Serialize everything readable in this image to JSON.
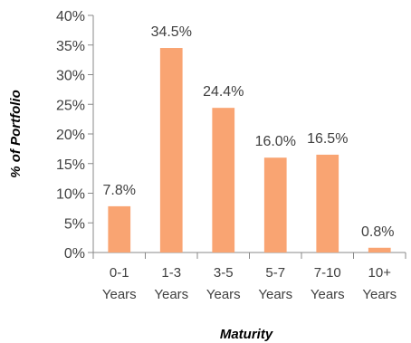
{
  "chart_data": {
    "type": "bar",
    "categories": [
      "0-1 Years",
      "1-3 Years",
      "3-5 Years",
      "5-7 Years",
      "7-10 Years",
      "10+ Years"
    ],
    "category_lines": [
      [
        "0-1",
        "Years"
      ],
      [
        "1-3",
        "Years"
      ],
      [
        "3-5",
        "Years"
      ],
      [
        "5-7",
        "Years"
      ],
      [
        "7-10",
        "Years"
      ],
      [
        "10+",
        "Years"
      ]
    ],
    "values": [
      7.8,
      34.5,
      24.4,
      16.0,
      16.5,
      0.8
    ],
    "value_labels": [
      "7.8%",
      "34.5%",
      "24.4%",
      "16.0%",
      "16.5%",
      "0.8%"
    ],
    "xlabel": "Maturity",
    "ylabel": "% of Portfolio",
    "ylim": [
      0,
      40
    ],
    "yticks": [
      "0%",
      "5%",
      "10%",
      "15%",
      "20%",
      "25%",
      "30%",
      "35%",
      "40%"
    ],
    "grid": false,
    "legend": "none",
    "colors": {
      "bar": "#F9A472",
      "axis": "#888888",
      "text": "#404040"
    }
  }
}
